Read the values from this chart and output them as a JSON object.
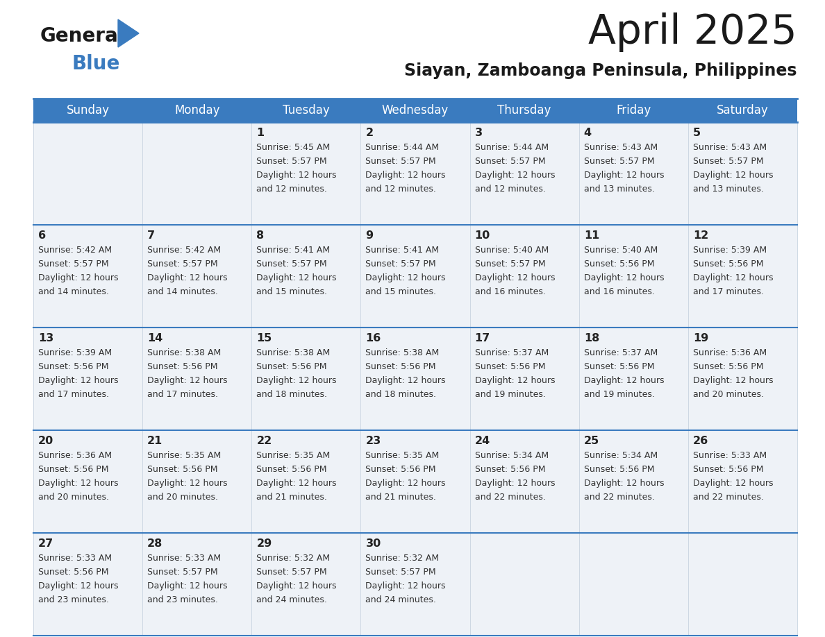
{
  "title": "April 2025",
  "subtitle": "Siayan, Zamboanga Peninsula, Philippines",
  "header_bg_color": "#3a7bbf",
  "header_text_color": "#ffffff",
  "cell_bg_color": "#eef2f7",
  "border_color": "#3a7bbf",
  "title_color": "#1a1a1a",
  "subtitle_color": "#1a1a1a",
  "days_of_week": [
    "Sunday",
    "Monday",
    "Tuesday",
    "Wednesday",
    "Thursday",
    "Friday",
    "Saturday"
  ],
  "weeks": [
    [
      {
        "day": "",
        "sunrise": "",
        "sunset": "",
        "daylight": ""
      },
      {
        "day": "",
        "sunrise": "",
        "sunset": "",
        "daylight": ""
      },
      {
        "day": "1",
        "sunrise": "5:45 AM",
        "sunset": "5:57 PM",
        "daylight": "12 hours and 12 minutes."
      },
      {
        "day": "2",
        "sunrise": "5:44 AM",
        "sunset": "5:57 PM",
        "daylight": "12 hours and 12 minutes."
      },
      {
        "day": "3",
        "sunrise": "5:44 AM",
        "sunset": "5:57 PM",
        "daylight": "12 hours and 12 minutes."
      },
      {
        "day": "4",
        "sunrise": "5:43 AM",
        "sunset": "5:57 PM",
        "daylight": "12 hours and 13 minutes."
      },
      {
        "day": "5",
        "sunrise": "5:43 AM",
        "sunset": "5:57 PM",
        "daylight": "12 hours and 13 minutes."
      }
    ],
    [
      {
        "day": "6",
        "sunrise": "5:42 AM",
        "sunset": "5:57 PM",
        "daylight": "12 hours and 14 minutes."
      },
      {
        "day": "7",
        "sunrise": "5:42 AM",
        "sunset": "5:57 PM",
        "daylight": "12 hours and 14 minutes."
      },
      {
        "day": "8",
        "sunrise": "5:41 AM",
        "sunset": "5:57 PM",
        "daylight": "12 hours and 15 minutes."
      },
      {
        "day": "9",
        "sunrise": "5:41 AM",
        "sunset": "5:57 PM",
        "daylight": "12 hours and 15 minutes."
      },
      {
        "day": "10",
        "sunrise": "5:40 AM",
        "sunset": "5:57 PM",
        "daylight": "12 hours and 16 minutes."
      },
      {
        "day": "11",
        "sunrise": "5:40 AM",
        "sunset": "5:56 PM",
        "daylight": "12 hours and 16 minutes."
      },
      {
        "day": "12",
        "sunrise": "5:39 AM",
        "sunset": "5:56 PM",
        "daylight": "12 hours and 17 minutes."
      }
    ],
    [
      {
        "day": "13",
        "sunrise": "5:39 AM",
        "sunset": "5:56 PM",
        "daylight": "12 hours and 17 minutes."
      },
      {
        "day": "14",
        "sunrise": "5:38 AM",
        "sunset": "5:56 PM",
        "daylight": "12 hours and 17 minutes."
      },
      {
        "day": "15",
        "sunrise": "5:38 AM",
        "sunset": "5:56 PM",
        "daylight": "12 hours and 18 minutes."
      },
      {
        "day": "16",
        "sunrise": "5:38 AM",
        "sunset": "5:56 PM",
        "daylight": "12 hours and 18 minutes."
      },
      {
        "day": "17",
        "sunrise": "5:37 AM",
        "sunset": "5:56 PM",
        "daylight": "12 hours and 19 minutes."
      },
      {
        "day": "18",
        "sunrise": "5:37 AM",
        "sunset": "5:56 PM",
        "daylight": "12 hours and 19 minutes."
      },
      {
        "day": "19",
        "sunrise": "5:36 AM",
        "sunset": "5:56 PM",
        "daylight": "12 hours and 20 minutes."
      }
    ],
    [
      {
        "day": "20",
        "sunrise": "5:36 AM",
        "sunset": "5:56 PM",
        "daylight": "12 hours and 20 minutes."
      },
      {
        "day": "21",
        "sunrise": "5:35 AM",
        "sunset": "5:56 PM",
        "daylight": "12 hours and 20 minutes."
      },
      {
        "day": "22",
        "sunrise": "5:35 AM",
        "sunset": "5:56 PM",
        "daylight": "12 hours and 21 minutes."
      },
      {
        "day": "23",
        "sunrise": "5:35 AM",
        "sunset": "5:56 PM",
        "daylight": "12 hours and 21 minutes."
      },
      {
        "day": "24",
        "sunrise": "5:34 AM",
        "sunset": "5:56 PM",
        "daylight": "12 hours and 22 minutes."
      },
      {
        "day": "25",
        "sunrise": "5:34 AM",
        "sunset": "5:56 PM",
        "daylight": "12 hours and 22 minutes."
      },
      {
        "day": "26",
        "sunrise": "5:33 AM",
        "sunset": "5:56 PM",
        "daylight": "12 hours and 22 minutes."
      }
    ],
    [
      {
        "day": "27",
        "sunrise": "5:33 AM",
        "sunset": "5:56 PM",
        "daylight": "12 hours and 23 minutes."
      },
      {
        "day": "28",
        "sunrise": "5:33 AM",
        "sunset": "5:57 PM",
        "daylight": "12 hours and 23 minutes."
      },
      {
        "day": "29",
        "sunrise": "5:32 AM",
        "sunset": "5:57 PM",
        "daylight": "12 hours and 24 minutes."
      },
      {
        "day": "30",
        "sunrise": "5:32 AM",
        "sunset": "5:57 PM",
        "daylight": "12 hours and 24 minutes."
      },
      {
        "day": "",
        "sunrise": "",
        "sunset": "",
        "daylight": ""
      },
      {
        "day": "",
        "sunrise": "",
        "sunset": "",
        "daylight": ""
      },
      {
        "day": "",
        "sunrise": "",
        "sunset": "",
        "daylight": ""
      }
    ]
  ],
  "fig_width": 11.88,
  "fig_height": 9.18,
  "dpi": 100
}
